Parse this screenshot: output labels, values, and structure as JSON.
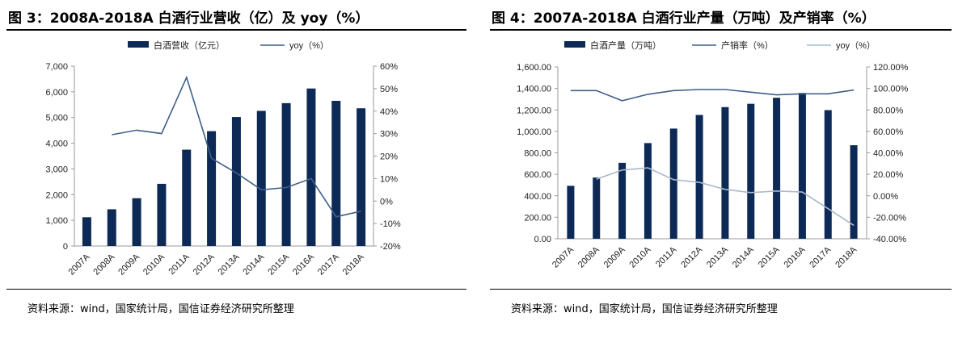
{
  "panels": [
    {
      "title": "图 3：2008A-2018A 白酒行业营收（亿）及 yoy（%）",
      "source": "资料来源：wind，国家统计局，国信证券经济研究所整理"
    },
    {
      "title": "图 4：2007A-2018A 白酒行业产量（万吨）及产销率（%）",
      "source": "资料来源：wind，国家统计局，国信证券经济研究所整理"
    }
  ],
  "chart_data": [
    {
      "type": "bar",
      "title": "图 3：2008A-2018A 白酒行业营收（亿）及 yoy（%）",
      "categories": [
        "2007A",
        "2008A",
        "2009A",
        "2010A",
        "2011A",
        "2012A",
        "2013A",
        "2014A",
        "2015A",
        "2016A",
        "2017A",
        "2018A"
      ],
      "series": [
        {
          "name": "白酒营收（亿元）",
          "type": "bar",
          "axis": "left",
          "color": "#0d2a56",
          "values": [
            1120,
            1430,
            1860,
            2420,
            3750,
            4470,
            5020,
            5260,
            5560,
            6130,
            5650,
            5360
          ]
        },
        {
          "name": "yoy（%）",
          "type": "line",
          "axis": "right",
          "color": "#3f5f8a",
          "values": [
            null,
            29.5,
            31.5,
            30.0,
            55.0,
            19.0,
            12.5,
            5.0,
            6.0,
            10.0,
            -7.0,
            -4.5
          ]
        }
      ],
      "ylim_left": [
        0,
        7000
      ],
      "yticks_left": [
        0,
        1000,
        2000,
        3000,
        4000,
        5000,
        6000,
        7000
      ],
      "yticks_left_labels": [
        "0",
        "1,000",
        "2,000",
        "3,000",
        "4,000",
        "5,000",
        "6,000",
        "7,000"
      ],
      "ylim_right": [
        -20,
        60
      ],
      "yticks_right": [
        -20,
        -10,
        0,
        10,
        20,
        30,
        40,
        50,
        60
      ],
      "yticks_right_labels": [
        "-20%",
        "-10%",
        "0%",
        "10%",
        "20%",
        "30%",
        "40%",
        "50%",
        "60%"
      ],
      "legend_position": "top",
      "grid": false
    },
    {
      "type": "bar",
      "title": "图 4：2007A-2018A 白酒行业产量（万吨）及产销率（%）",
      "categories": [
        "2007A",
        "2008A",
        "2009A",
        "2010A",
        "2011A",
        "2012A",
        "2013A",
        "2014A",
        "2015A",
        "2016A",
        "2017A",
        "2018A"
      ],
      "series": [
        {
          "name": "白酒产量（万吨）",
          "type": "bar",
          "axis": "left",
          "color": "#0d2a56",
          "values": [
            493,
            570,
            707,
            891,
            1026,
            1153,
            1226,
            1257,
            1313,
            1358,
            1198,
            871
          ]
        },
        {
          "name": "产销率（%）",
          "type": "line",
          "axis": "right",
          "color": "#3f5f8a",
          "values": [
            98.0,
            98.0,
            88.5,
            94.5,
            98.0,
            99.0,
            99.0,
            96.5,
            94.0,
            95.0,
            95.0,
            98.5
          ]
        },
        {
          "name": "yoy（%）",
          "type": "line",
          "axis": "right",
          "color": "#a9b9cc",
          "values": [
            null,
            15.5,
            24.0,
            26.0,
            15.0,
            12.5,
            6.0,
            3.0,
            4.5,
            3.5,
            -12.0,
            -27.5
          ]
        }
      ],
      "ylim_left": [
        0,
        1600
      ],
      "yticks_left": [
        0,
        200,
        400,
        600,
        800,
        1000,
        1200,
        1400,
        1600
      ],
      "yticks_left_labels": [
        "0.00",
        "200.00",
        "400.00",
        "600.00",
        "800.00",
        "1,000.00",
        "1,200.00",
        "1,400.00",
        "1,600.00"
      ],
      "ylim_right": [
        -40,
        120
      ],
      "yticks_right": [
        -40,
        -20,
        0,
        20,
        40,
        60,
        80,
        100,
        120
      ],
      "yticks_right_labels": [
        "-40.00%",
        "-20.00%",
        "0.00%",
        "20.00%",
        "40.00%",
        "60.00%",
        "80.00%",
        "100.00%",
        "120.00%"
      ],
      "legend_position": "top",
      "grid": false
    }
  ]
}
